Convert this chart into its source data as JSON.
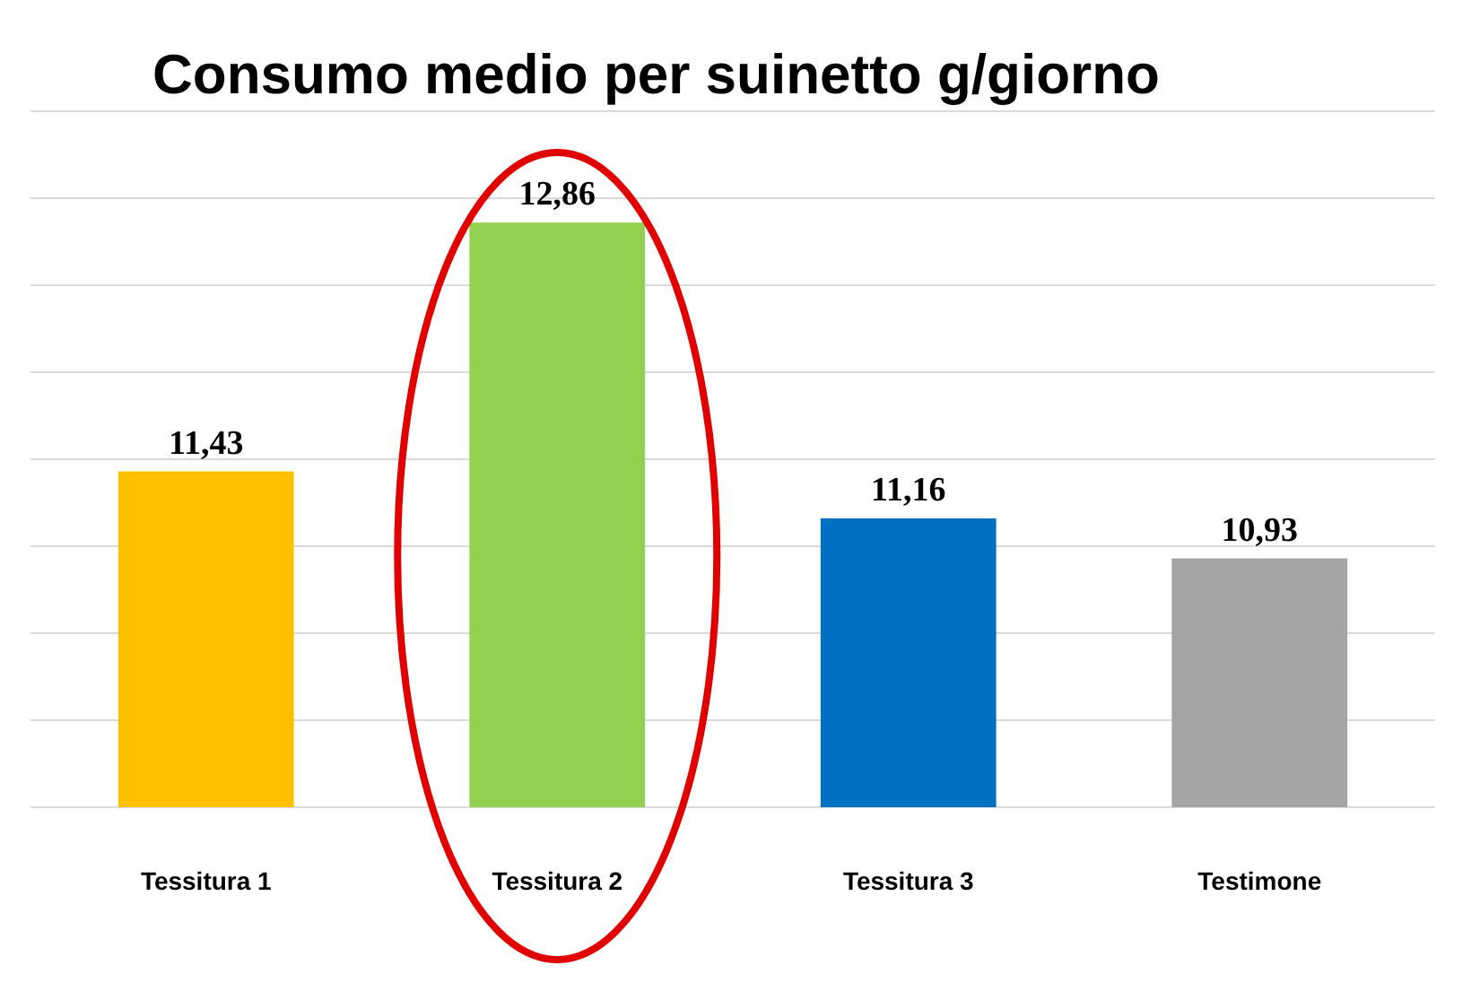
{
  "chart_data": {
    "type": "bar",
    "title": "Consumo medio per suinetto g/giorno",
    "categories": [
      "Tessitura 1",
      "Tessitura 2",
      "Tessitura 3",
      "Testimone"
    ],
    "values": [
      11.43,
      12.86,
      11.16,
      10.93
    ],
    "value_labels": [
      "11,43",
      "12,86",
      "11,16",
      "10,93"
    ],
    "colors": [
      "#ffc000",
      "#92d050",
      "#0070c0",
      "#a5a5a5"
    ],
    "ylim": [
      9.5,
      13.5
    ],
    "yticks": [
      {
        "value": 9.5,
        "label": null
      },
      {
        "value": 10,
        "label": null
      },
      {
        "value": 10.5,
        "label": null
      },
      {
        "value": 11,
        "label": null
      },
      {
        "value": 11.5,
        "label": null
      },
      {
        "value": 12,
        "label": null
      },
      {
        "value": 12.5,
        "label": null
      },
      {
        "value": 13,
        "label": null
      },
      {
        "value": 13.5,
        "label": null
      }
    ],
    "grid": "y",
    "tick_labels": "x"
  }
}
